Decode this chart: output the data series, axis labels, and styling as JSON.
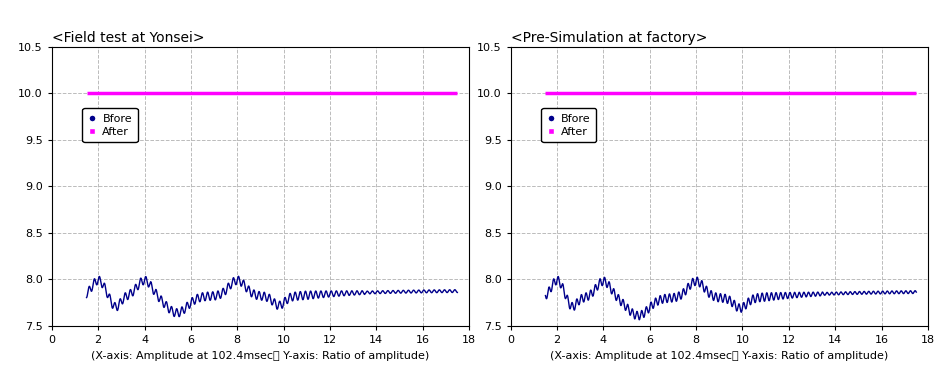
{
  "left_title": "<Field test at Yonsei>",
  "right_title": "<Pre-Simulation at factory>",
  "xlabel_note": "(X-axis: Amplitude at 102.4msec， Y-axis: Ratio of amplitude)",
  "xlim": [
    0,
    18
  ],
  "ylim": [
    7.5,
    10.5
  ],
  "yticks": [
    7.5,
    8.0,
    8.5,
    9.0,
    9.5,
    10.0,
    10.5
  ],
  "xticks": [
    0,
    2,
    4,
    6,
    8,
    10,
    12,
    14,
    16,
    18
  ],
  "after_y": 10.0,
  "before_color": "#00008B",
  "after_color": "#FF00FF",
  "bg_color": "#FFFFFF",
  "grid_color": "#BBBBBB",
  "title_fontsize": 10,
  "tick_fontsize": 8,
  "note_fontsize": 8,
  "legend_fontsize": 8
}
